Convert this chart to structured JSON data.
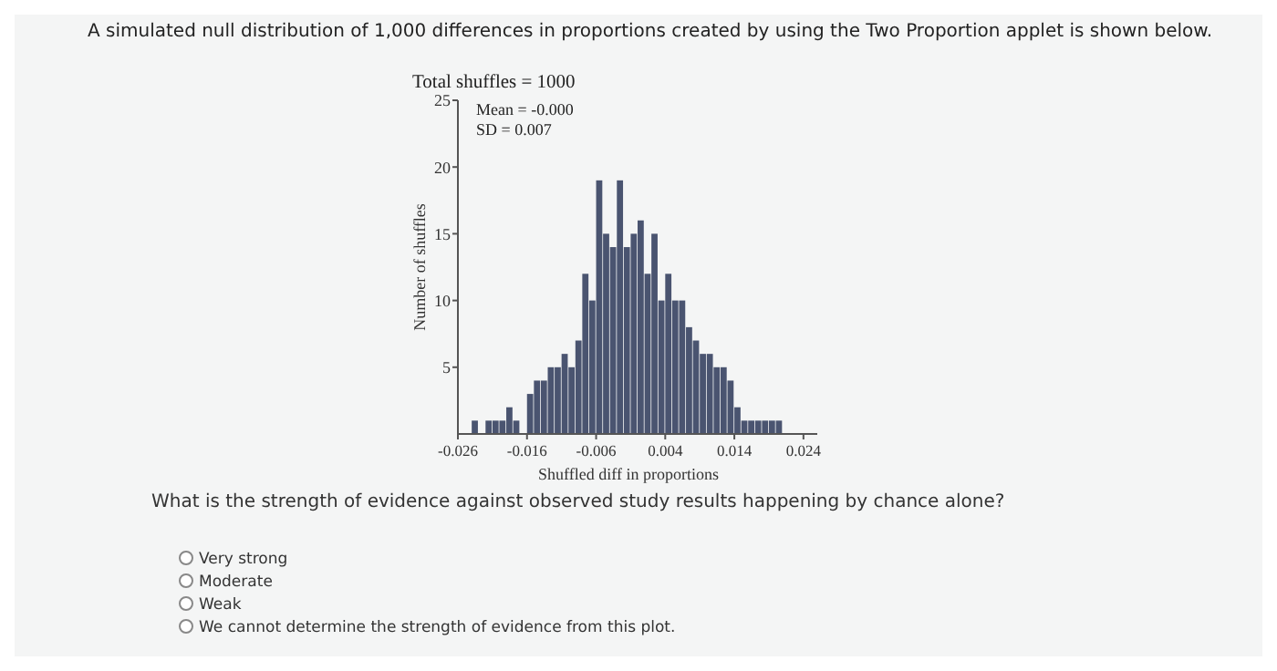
{
  "chart_data": {
    "type": "histogram",
    "title": "A simulated null distribution of 1,000 differences in proportions created by using the Two Proportion applet is shown below.",
    "subtitle": "Total shuffles = 1000",
    "xlabel": "Shuffled diff in proportions",
    "ylabel": "Number of shuffles",
    "bins": [
      -0.024,
      -0.023,
      -0.022,
      -0.021,
      -0.02,
      -0.019,
      -0.018,
      -0.017,
      -0.016,
      -0.015,
      -0.014,
      -0.013,
      -0.012,
      -0.011,
      -0.01,
      -0.009,
      -0.008,
      -0.007,
      -0.006,
      -0.005,
      -0.004,
      -0.003,
      -0.002,
      -0.001,
      0,
      0.001,
      0.002,
      0.003,
      0.004,
      0.005,
      0.006,
      0.007,
      0.008,
      0.009,
      0.01,
      0.011,
      0.012,
      0.013,
      0.014,
      0.015,
      0.016,
      0.017,
      0.018,
      0.019,
      0.02,
      0.021,
      0.022
    ],
    "values": [
      1,
      0,
      1,
      1,
      1,
      2,
      1,
      0,
      3,
      4,
      4,
      5,
      5,
      6,
      5,
      7,
      12,
      10,
      19,
      15,
      14,
      19,
      14,
      15,
      16,
      12,
      15,
      10,
      12,
      10,
      10,
      8,
      7,
      6,
      6,
      5,
      5,
      4,
      2,
      1,
      1,
      1,
      1,
      1,
      1,
      0
    ],
    "color": "#4a5470",
    "xlim": [
      -0.026,
      0.026
    ],
    "ylim": [
      0,
      25
    ],
    "xticks": [
      -0.026,
      -0.016,
      -0.006,
      0.004,
      0.014,
      0.024
    ],
    "yticks": [
      5,
      10,
      15,
      20,
      25
    ],
    "grid": false,
    "annotations": [
      "Mean = -0.000",
      "SD = 0.007",
      "What is the strength of evidence against observed study results happening by chance alone?",
      "Very strong",
      "Moderate",
      "Weak",
      "We cannot determine the strength of evidence from this plot."
    ]
  }
}
